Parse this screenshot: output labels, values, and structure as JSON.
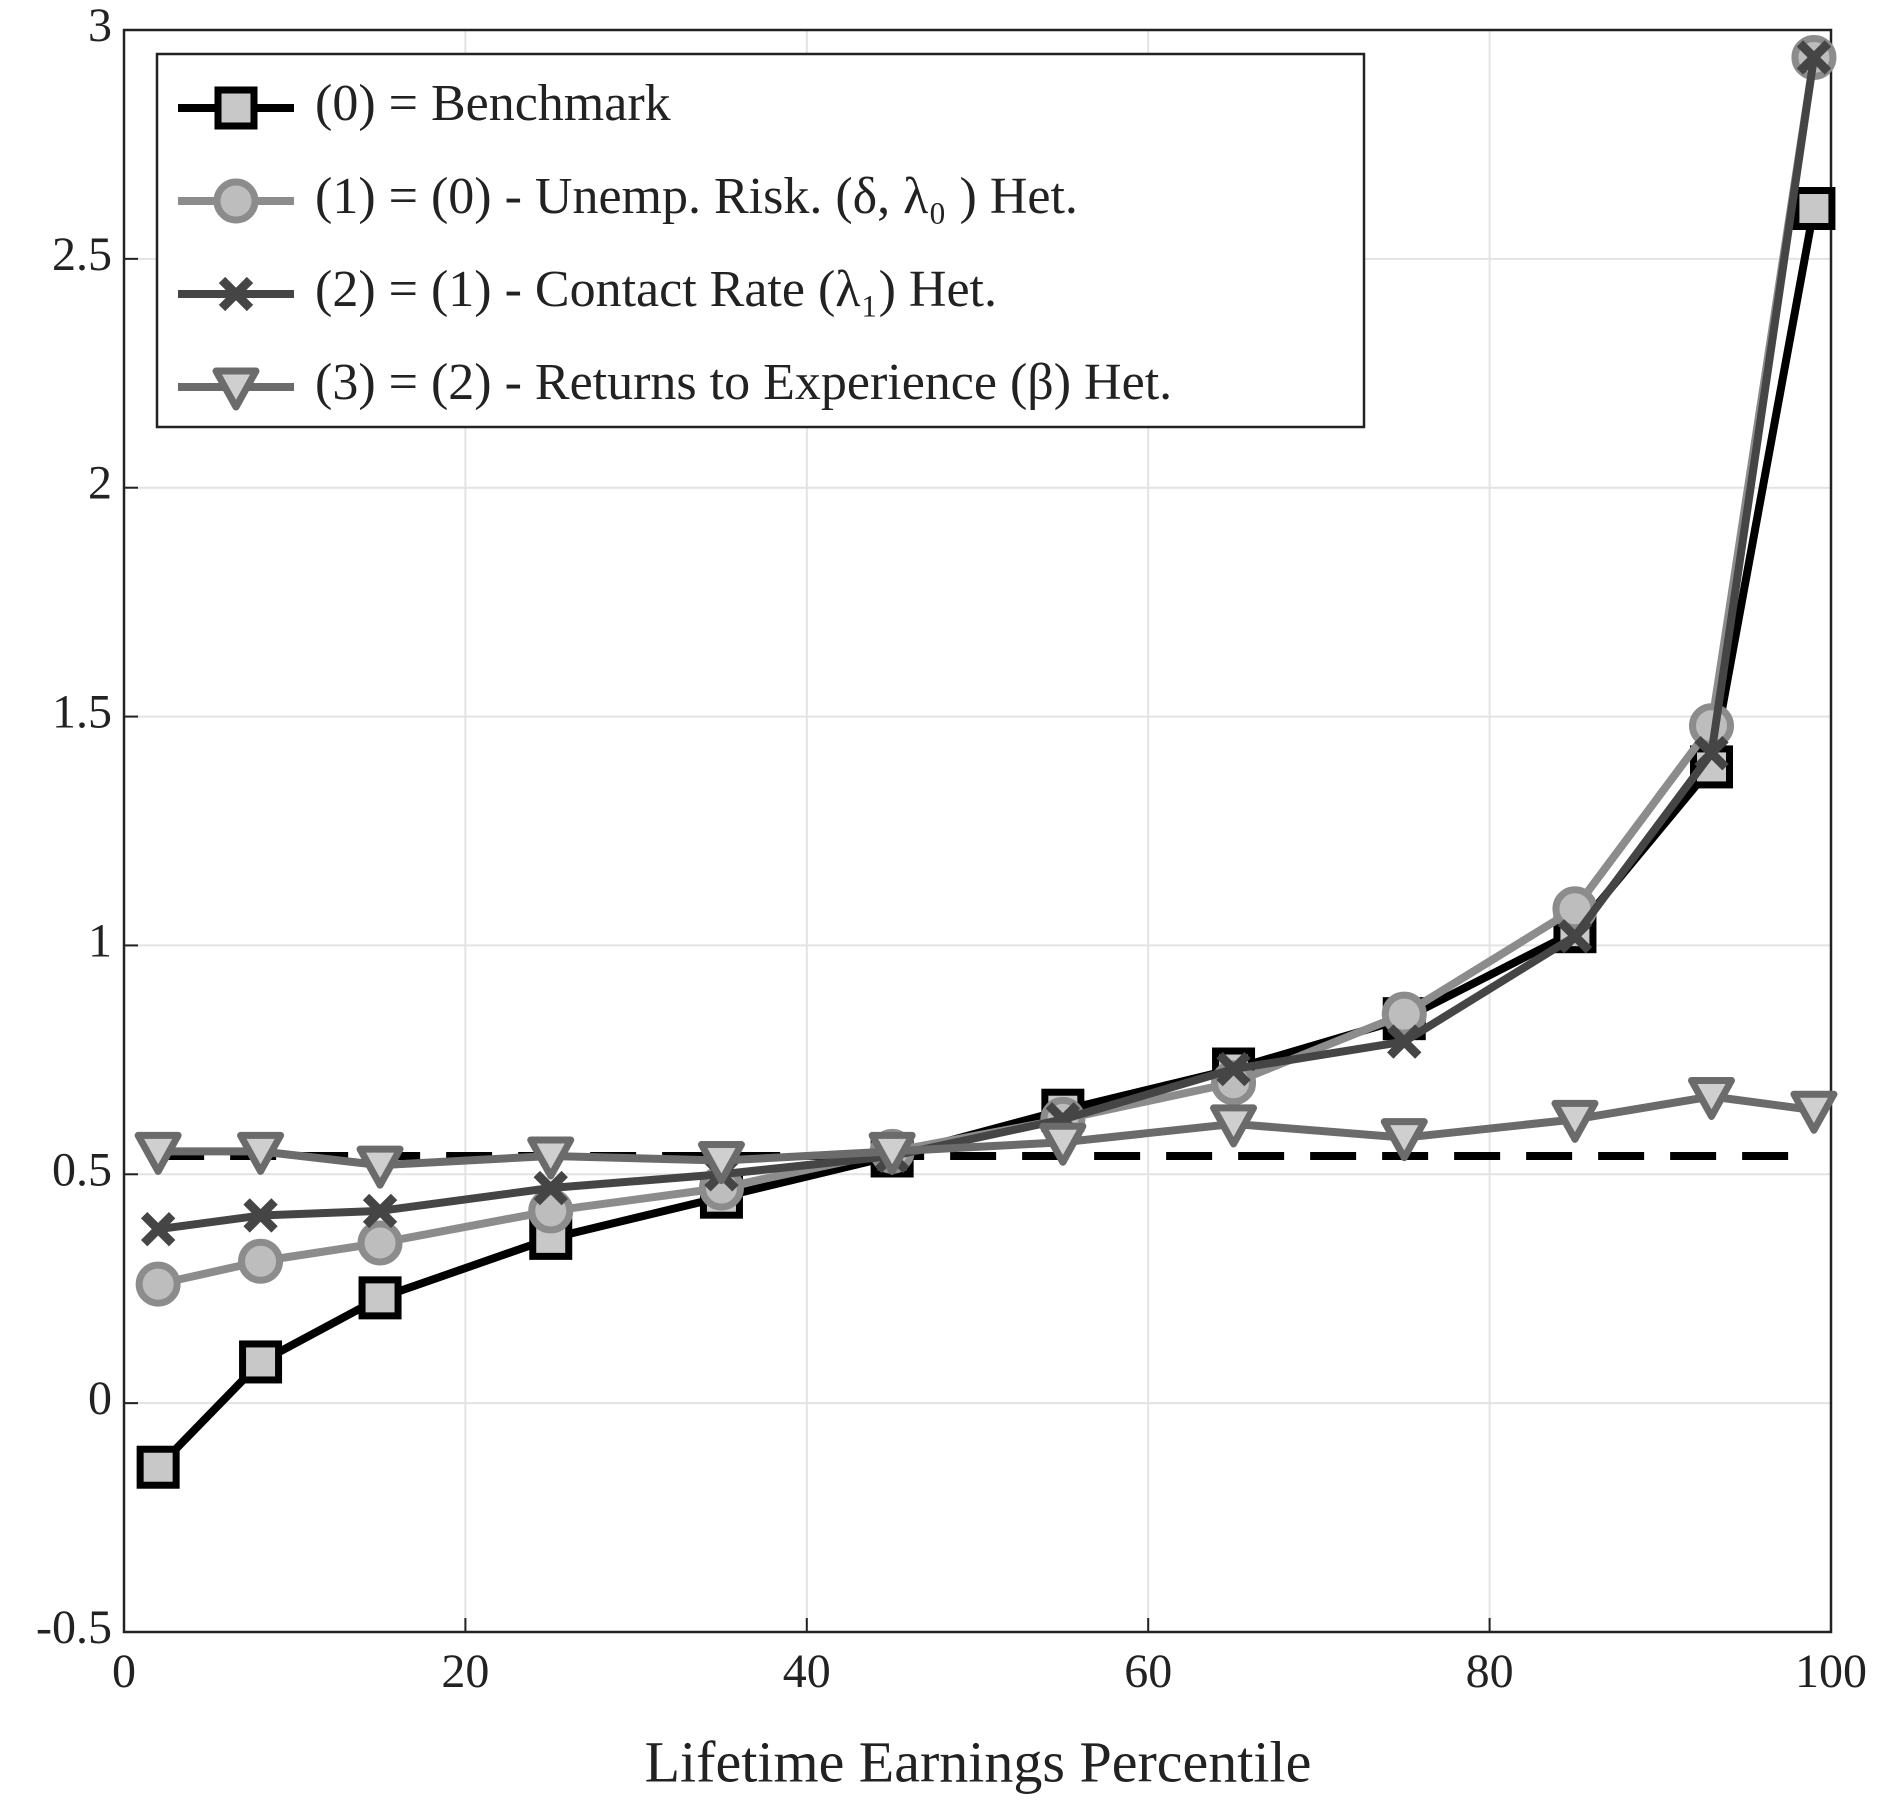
{
  "chart_data": {
    "type": "line",
    "x_label": "Lifetime Earnings Percentile",
    "x": [
      2,
      8,
      15,
      25,
      35,
      45,
      55,
      65,
      75,
      85,
      93,
      99
    ],
    "series": [
      {
        "name": "(0) = Benchmark",
        "color": "#000000",
        "marker": "square",
        "marker_fill": "#c8c8c8",
        "values": [
          -0.14,
          0.09,
          0.23,
          0.36,
          0.45,
          0.54,
          0.64,
          0.73,
          0.84,
          1.03,
          1.39,
          2.61
        ]
      },
      {
        "name": "(1) = (0) - Unemp. Risk. (δ, λ₀ ) Het.",
        "color": "#8c8c8c",
        "marker": "circle",
        "marker_fill": "#bdbdbd",
        "values": [
          0.26,
          0.31,
          0.35,
          0.42,
          0.47,
          0.55,
          0.62,
          0.7,
          0.85,
          1.08,
          1.48,
          2.94
        ]
      },
      {
        "name": "(2) = (1) - Contact Rate (λ₁) Het.",
        "color": "#454545",
        "marker": "x",
        "marker_fill": "#454545",
        "values": [
          0.38,
          0.41,
          0.42,
          0.47,
          0.5,
          0.54,
          0.62,
          0.73,
          0.79,
          1.02,
          1.42,
          2.94
        ]
      },
      {
        "name": "(3) = (2) - Returns to Experience (β) Het.",
        "color": "#6b6b6b",
        "marker": "triangle-down",
        "marker_fill": "#cfcfcf",
        "values": [
          0.55,
          0.55,
          0.52,
          0.54,
          0.53,
          0.55,
          0.57,
          0.61,
          0.58,
          0.62,
          0.67,
          0.64
        ]
      }
    ],
    "reference_line": {
      "value": 0.54,
      "color": "#000000",
      "style": "dashed"
    },
    "xlim": [
      0,
      100
    ],
    "xticks": [
      0,
      20,
      40,
      60,
      80,
      100
    ],
    "ylim": [
      -0.5,
      3
    ],
    "yticks": [
      -0.5,
      0,
      0.5,
      1,
      1.5,
      2,
      2.5,
      3
    ],
    "grid": true,
    "legend": "upper left"
  }
}
